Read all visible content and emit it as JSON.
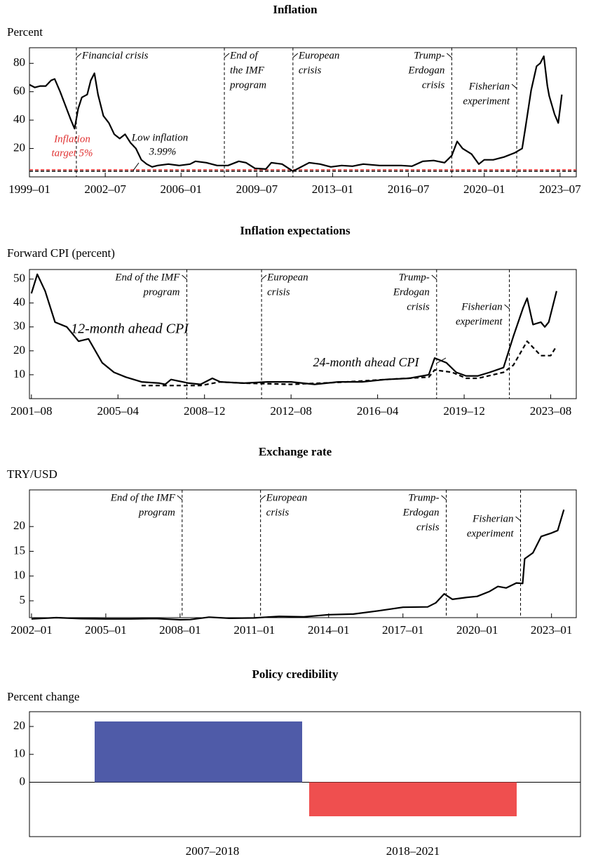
{
  "chart_data": [
    {
      "type": "line",
      "title": "Inflation",
      "ylabel": "Percent",
      "xlim": [
        "1999–01",
        "2024–04"
      ],
      "xticks": [
        "1999–01",
        "2002–07",
        "2006–01",
        "2009–07",
        "2013–01",
        "2016–07",
        "2020–01",
        "2023–07"
      ],
      "ylim": [
        0,
        91
      ],
      "yticks": [
        20,
        40,
        60,
        80
      ],
      "series": [
        {
          "color": "#000000",
          "dash": false,
          "x": [
            "1999–01",
            "1999–04",
            "1999–07",
            "1999–10",
            "2000–01",
            "2000–03",
            "2000–06",
            "2000–09",
            "2000–12",
            "2001–02",
            "2001–04",
            "2001–06",
            "2001–09",
            "2001–11",
            "2002–01",
            "2002–03",
            "2002–06",
            "2002–09",
            "2002–12",
            "2003–03",
            "2003–06",
            "2003–09",
            "2003–12",
            "2004–03",
            "2004–06",
            "2004–09",
            "2004–12",
            "2005–06",
            "2005–12",
            "2006–06",
            "2006–09",
            "2007–03",
            "2007–09",
            "2008–03",
            "2008–09",
            "2009–01",
            "2009–06",
            "2009–12",
            "2010–03",
            "2010–09",
            "2011–03",
            "2011–06",
            "2011–12",
            "2012–06",
            "2012–12",
            "2013–06",
            "2013–12",
            "2014–06",
            "2015–03",
            "2015–09",
            "2016–03",
            "2016–09",
            "2017–03",
            "2017–09",
            "2018–03",
            "2018–07",
            "2018–10",
            "2019–01",
            "2019–06",
            "2019–10",
            "2020–01",
            "2020–06",
            "2020–12",
            "2021–06",
            "2021–10",
            "2021–12",
            "2022–03",
            "2022–06",
            "2022–08",
            "2022–10",
            "2022–12",
            "2023–01",
            "2023–04",
            "2023–06",
            "2023–08"
          ],
          "values": [
            65,
            63,
            64,
            64,
            68,
            69,
            60,
            50,
            40,
            34,
            48,
            56,
            58,
            68,
            73,
            58,
            43,
            38,
            30,
            27,
            30,
            24,
            20,
            12,
            9,
            7,
            8,
            9,
            8,
            9,
            11,
            10,
            8,
            8,
            11,
            10,
            6,
            5.5,
            10,
            9,
            4,
            6,
            10,
            9,
            7,
            8,
            7.5,
            9,
            8,
            8,
            8,
            7.5,
            11,
            11.5,
            10,
            15,
            25,
            20,
            16,
            9,
            12,
            12,
            14,
            17,
            20,
            36,
            61,
            78,
            80,
            85,
            64,
            57,
            44,
            38,
            58
          ]
        }
      ],
      "reference_lines": [
        {
          "value": 5,
          "color": "#e03131",
          "label": [
            "Inflation",
            "target 5%"
          ]
        },
        {
          "value": 3.99,
          "color": "#000000",
          "label": [
            "Low inflation",
            "3.99%"
          ]
        }
      ],
      "events": [
        {
          "date": "2001–03",
          "label": [
            "Financial crisis"
          ]
        },
        {
          "date": "2008–01",
          "label": [
            "End of",
            "the IMF",
            "program"
          ]
        },
        {
          "date": "2011–03",
          "label": [
            "European",
            "crisis"
          ]
        },
        {
          "date": "2018–07",
          "label": [
            "Trump-",
            "Erdogan",
            "crisis"
          ]
        },
        {
          "date": "2021–07",
          "label": [
            "Fisherian",
            "experiment"
          ]
        }
      ]
    },
    {
      "type": "line",
      "title": "Inflation expectations",
      "ylabel": "Forward CPI (percent)",
      "xlim": [
        "2001–07",
        "2024–09"
      ],
      "xticks": [
        "2001–08",
        "2005–04",
        "2008–12",
        "2012–08",
        "2016–04",
        "2019–12",
        "2023–08"
      ],
      "ylim": [
        0,
        54
      ],
      "yticks": [
        10,
        20,
        30,
        40,
        50
      ],
      "series": [
        {
          "name": "12-month ahead CPI",
          "color": "#000000",
          "dash": false,
          "x": [
            "2001–08",
            "2001–11",
            "2002–03",
            "2002–08",
            "2003–02",
            "2003–08",
            "2004–01",
            "2004–08",
            "2005–02",
            "2005–08",
            "2006–04",
            "2007–01",
            "2007–04",
            "2007–07",
            "2008–04",
            "2008–10",
            "2009–04",
            "2009–08",
            "2010–08",
            "2011–08",
            "2012–08",
            "2013–08",
            "2014–08",
            "2015–08",
            "2016–08",
            "2017–08",
            "2018–06",
            "2018–09",
            "2019–03",
            "2019–08",
            "2020–01",
            "2020–07",
            "2021–01",
            "2021–08",
            "2022–01",
            "2022–06",
            "2022–08",
            "2022–11",
            "2023–03",
            "2023–05",
            "2023–07",
            "2023–11"
          ],
          "values": [
            44,
            52,
            45,
            32,
            30,
            24,
            25,
            15,
            11,
            9,
            7,
            6.5,
            6,
            8,
            6.5,
            6,
            8.5,
            7,
            6.5,
            7,
            7,
            6,
            7,
            7,
            8,
            8.5,
            10,
            17,
            15,
            11,
            9.5,
            9.5,
            11,
            13,
            26,
            38,
            42,
            31,
            32,
            30,
            32,
            45
          ]
        },
        {
          "name": "24-month ahead CPI",
          "color": "#000000",
          "dash": true,
          "x": [
            "2006–04",
            "2007–04",
            "2008–10",
            "2009–08",
            "2010–08",
            "2012–08",
            "2014–08",
            "2016–08",
            "2018–06",
            "2018–09",
            "2019–06",
            "2020–01",
            "2020–07",
            "2021–08",
            "2022–01",
            "2022–08",
            "2023–03",
            "2023–08",
            "2023–11"
          ],
          "values": [
            5.5,
            5.5,
            5.5,
            7,
            6.5,
            6,
            6.8,
            8,
            9,
            12,
            11,
            8.5,
            8.5,
            11,
            14,
            24,
            18,
            18,
            22
          ]
        }
      ],
      "events": [
        {
          "date": "2008–03",
          "label": [
            "End of the IMF",
            "program"
          ]
        },
        {
          "date": "2011–05",
          "label": [
            "European",
            "crisis"
          ]
        },
        {
          "date": "2018–10",
          "label": [
            "Trump-",
            "Erdogan",
            "crisis"
          ]
        },
        {
          "date": "2021–11",
          "label": [
            "Fisherian",
            "experiment"
          ]
        }
      ]
    },
    {
      "type": "line",
      "title": "Exchange rate",
      "ylabel": "TRY/USD",
      "xlim": [
        "2001–12",
        "2024–01"
      ],
      "xticks": [
        "2002–01",
        "2005–01",
        "2008–01",
        "2011–01",
        "2014–01",
        "2017–01",
        "2020–01",
        "2023–01"
      ],
      "ylim": [
        1.6,
        27.4
      ],
      "yticks": [
        5,
        10,
        15,
        20
      ],
      "series": [
        {
          "color": "#000000",
          "dash": false,
          "x": [
            "2002–01",
            "2003–01",
            "2004–01",
            "2005–01",
            "2006–01",
            "2007–01",
            "2008–01",
            "2008–06",
            "2009–03",
            "2010–01",
            "2011–01",
            "2012–01",
            "2013–01",
            "2014–01",
            "2015–01",
            "2016–01",
            "2017–01",
            "2018–01",
            "2018–05",
            "2018–09",
            "2019–01",
            "2019–08",
            "2020–01",
            "2020–07",
            "2020–11",
            "2021–03",
            "2021–08",
            "2021–11",
            "2021–12",
            "2022–04",
            "2022–08",
            "2023–01",
            "2023–04",
            "2023–07"
          ],
          "values": [
            1.35,
            1.6,
            1.4,
            1.35,
            1.34,
            1.42,
            1.17,
            1.22,
            1.7,
            1.47,
            1.55,
            1.85,
            1.77,
            2.2,
            2.33,
            2.98,
            3.7,
            3.77,
            4.6,
            6.4,
            5.3,
            5.7,
            5.9,
            6.9,
            7.9,
            7.6,
            8.6,
            8.5,
            13.5,
            14.7,
            18,
            18.7,
            19.2,
            23.4
          ]
        }
      ],
      "events": [
        {
          "date": "2008–02",
          "label": [
            "End of the IMF",
            "program"
          ]
        },
        {
          "date": "2011–04",
          "label": [
            "European",
            "crisis"
          ]
        },
        {
          "date": "2018–10",
          "label": [
            "Trump-",
            "Erdogan",
            "crisis"
          ]
        },
        {
          "date": "2021–10",
          "label": [
            "Fisherian",
            "experiment"
          ]
        }
      ]
    },
    {
      "type": "bar",
      "title": "Policy credibility",
      "ylabel": "Percent change",
      "categories": [
        "2007–2018",
        "2018–2021"
      ],
      "values": [
        21.8,
        -12.2
      ],
      "colors": [
        "#4f5ba8",
        "#ef4f4f"
      ],
      "ylim": [
        -19.5,
        25.3
      ],
      "yticks": [
        0,
        10,
        20
      ]
    }
  ]
}
